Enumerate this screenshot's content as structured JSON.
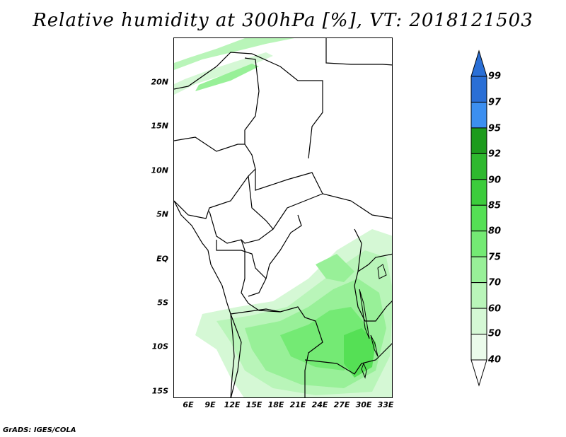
{
  "title": "Relative humidity at 300hPa [%], VT: 2018121503",
  "credit": "GrADS: IGES/COLA",
  "map": {
    "lat_labels": [
      "20N",
      "15N",
      "10N",
      "5N",
      "EQ",
      "5S",
      "10S",
      "15S"
    ],
    "lon_labels": [
      "6E",
      "9E",
      "12E",
      "15E",
      "18E",
      "21E",
      "24E",
      "27E",
      "30E",
      "33E"
    ]
  },
  "colorbar": {
    "levels": [
      "99",
      "97",
      "95",
      "92",
      "90",
      "85",
      "80",
      "75",
      "70",
      "60",
      "50",
      "40"
    ],
    "colors": [
      "#2a6fd6",
      "#3c8ff0",
      "#1d9b1d",
      "#2eb82e",
      "#3ccc3c",
      "#55e055",
      "#74ea74",
      "#98f098",
      "#b9f5b9",
      "#d5f8d5",
      "#ebfbeb"
    ],
    "top_arrow_color": "#2a6fd6",
    "bottom_arrow_color": "#ffffff"
  }
}
